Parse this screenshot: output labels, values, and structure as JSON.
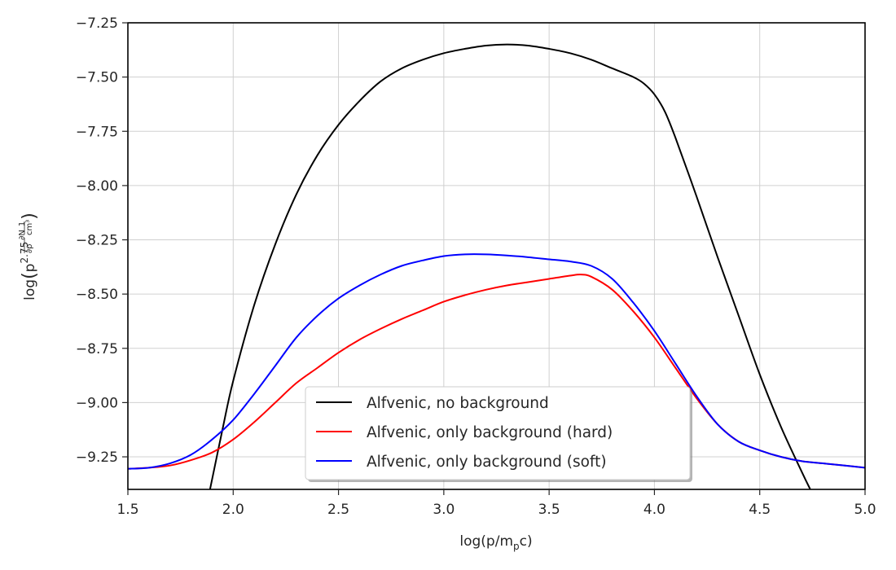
{
  "chart_data": {
    "type": "line",
    "title": "",
    "xlabel": "log(p/m_pc)",
    "ylabel": "log(p^2.75 ∂N/∂p 1/cm^3)",
    "xlim": [
      1.5,
      5.0
    ],
    "ylim": [
      -9.4,
      -7.25
    ],
    "grid": true,
    "legend_position": "lower-center",
    "x_ticks": [
      1.5,
      2.0,
      2.5,
      3.0,
      3.5,
      4.0,
      4.5,
      5.0
    ],
    "x_tick_labels": [
      "1.5",
      "2.0",
      "2.5",
      "3.0",
      "3.5",
      "4.0",
      "4.5",
      "5.0"
    ],
    "y_ticks": [
      -7.25,
      -7.5,
      -7.75,
      -8.0,
      -8.25,
      -8.5,
      -8.75,
      -9.0,
      -9.25
    ],
    "y_tick_labels": [
      "−7.25",
      "−7.50",
      "−7.75",
      "−8.00",
      "−8.25",
      "−8.50",
      "−8.75",
      "−9.00",
      "−9.25"
    ],
    "series": [
      {
        "name": "Alfvenic, no background",
        "color": "#000000",
        "points": [
          [
            1.89,
            -9.4
          ],
          [
            1.95,
            -9.12
          ],
          [
            2.0,
            -8.9
          ],
          [
            2.1,
            -8.55
          ],
          [
            2.2,
            -8.27
          ],
          [
            2.3,
            -8.04
          ],
          [
            2.4,
            -7.86
          ],
          [
            2.5,
            -7.72
          ],
          [
            2.6,
            -7.61
          ],
          [
            2.7,
            -7.52
          ],
          [
            2.8,
            -7.46
          ],
          [
            2.9,
            -7.42
          ],
          [
            3.0,
            -7.39
          ],
          [
            3.1,
            -7.37
          ],
          [
            3.2,
            -7.355
          ],
          [
            3.3,
            -7.35
          ],
          [
            3.4,
            -7.355
          ],
          [
            3.5,
            -7.37
          ],
          [
            3.6,
            -7.39
          ],
          [
            3.7,
            -7.42
          ],
          [
            3.8,
            -7.46
          ],
          [
            3.9,
            -7.5
          ],
          [
            3.95,
            -7.53
          ],
          [
            4.0,
            -7.58
          ],
          [
            4.05,
            -7.66
          ],
          [
            4.1,
            -7.78
          ],
          [
            4.2,
            -8.05
          ],
          [
            4.3,
            -8.33
          ],
          [
            4.4,
            -8.6
          ],
          [
            4.5,
            -8.87
          ],
          [
            4.6,
            -9.11
          ],
          [
            4.7,
            -9.32
          ],
          [
            4.74,
            -9.4
          ]
        ]
      },
      {
        "name": "Alfvenic, only background (hard)",
        "color": "#ff0000",
        "points": [
          [
            1.5,
            -9.305
          ],
          [
            1.6,
            -9.3
          ],
          [
            1.7,
            -9.29
          ],
          [
            1.8,
            -9.265
          ],
          [
            1.9,
            -9.23
          ],
          [
            2.0,
            -9.17
          ],
          [
            2.1,
            -9.09
          ],
          [
            2.2,
            -9.0
          ],
          [
            2.3,
            -8.91
          ],
          [
            2.4,
            -8.84
          ],
          [
            2.5,
            -8.77
          ],
          [
            2.6,
            -8.71
          ],
          [
            2.7,
            -8.66
          ],
          [
            2.8,
            -8.615
          ],
          [
            2.9,
            -8.575
          ],
          [
            3.0,
            -8.535
          ],
          [
            3.1,
            -8.505
          ],
          [
            3.2,
            -8.48
          ],
          [
            3.3,
            -8.46
          ],
          [
            3.4,
            -8.445
          ],
          [
            3.5,
            -8.43
          ],
          [
            3.6,
            -8.415
          ],
          [
            3.65,
            -8.41
          ],
          [
            3.7,
            -8.42
          ],
          [
            3.8,
            -8.48
          ],
          [
            3.9,
            -8.58
          ],
          [
            4.0,
            -8.7
          ],
          [
            4.1,
            -8.84
          ],
          [
            4.2,
            -8.98
          ],
          [
            4.3,
            -9.1
          ],
          [
            4.4,
            -9.18
          ],
          [
            4.5,
            -9.22
          ],
          [
            4.6,
            -9.25
          ],
          [
            4.7,
            -9.27
          ],
          [
            4.8,
            -9.28
          ],
          [
            4.9,
            -9.29
          ],
          [
            5.0,
            -9.3
          ]
        ]
      },
      {
        "name": "Alfvenic, only background (soft)",
        "color": "#0000ff",
        "points": [
          [
            1.5,
            -9.305
          ],
          [
            1.6,
            -9.3
          ],
          [
            1.7,
            -9.28
          ],
          [
            1.8,
            -9.24
          ],
          [
            1.9,
            -9.17
          ],
          [
            2.0,
            -9.08
          ],
          [
            2.1,
            -8.96
          ],
          [
            2.2,
            -8.83
          ],
          [
            2.3,
            -8.7
          ],
          [
            2.4,
            -8.6
          ],
          [
            2.5,
            -8.52
          ],
          [
            2.6,
            -8.46
          ],
          [
            2.7,
            -8.41
          ],
          [
            2.8,
            -8.37
          ],
          [
            2.9,
            -8.345
          ],
          [
            3.0,
            -8.325
          ],
          [
            3.1,
            -8.317
          ],
          [
            3.2,
            -8.317
          ],
          [
            3.3,
            -8.322
          ],
          [
            3.4,
            -8.33
          ],
          [
            3.5,
            -8.34
          ],
          [
            3.6,
            -8.35
          ],
          [
            3.7,
            -8.37
          ],
          [
            3.8,
            -8.43
          ],
          [
            3.9,
            -8.54
          ],
          [
            4.0,
            -8.67
          ],
          [
            4.1,
            -8.82
          ],
          [
            4.2,
            -8.97
          ],
          [
            4.3,
            -9.1
          ],
          [
            4.4,
            -9.18
          ],
          [
            4.5,
            -9.22
          ],
          [
            4.6,
            -9.25
          ],
          [
            4.7,
            -9.27
          ],
          [
            4.8,
            -9.28
          ],
          [
            4.9,
            -9.29
          ],
          [
            5.0,
            -9.3
          ]
        ]
      }
    ]
  }
}
